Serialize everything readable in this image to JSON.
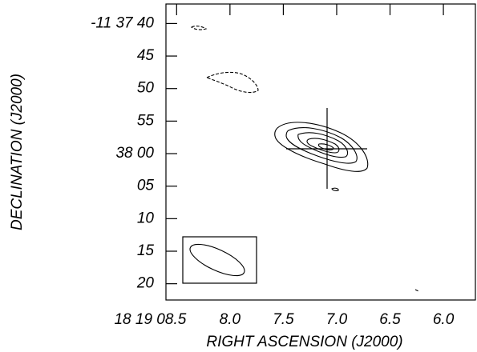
{
  "chart_data": {
    "type": "contour",
    "xlabel": "RIGHT ASCENSION (J2000)",
    "ylabel": "DECLINATION (J2000)",
    "xlim": [
      8.6,
      5.7
    ],
    "xticks": [
      {
        "value": 8.5,
        "label": "18 19 08.5"
      },
      {
        "value": 8.0,
        "label": "8.0"
      },
      7.5,
      {
        "value": 7.0,
        "label": "7.0"
      },
      6.5,
      {
        "value": 6.0,
        "label": "6.0"
      }
    ],
    "ylim": [
      37,
      82.5
    ],
    "yticks": [
      {
        "value": 40,
        "label": "-11 37 40"
      },
      45,
      50,
      55,
      {
        "value": 60,
        "label": "38 00"
      },
      {
        "value": 65,
        "label": "05"
      },
      {
        "value": 70,
        "label": "10"
      },
      {
        "value": 75,
        "label": "15"
      },
      {
        "value": 80,
        "label": "20"
      }
    ]
  }
}
